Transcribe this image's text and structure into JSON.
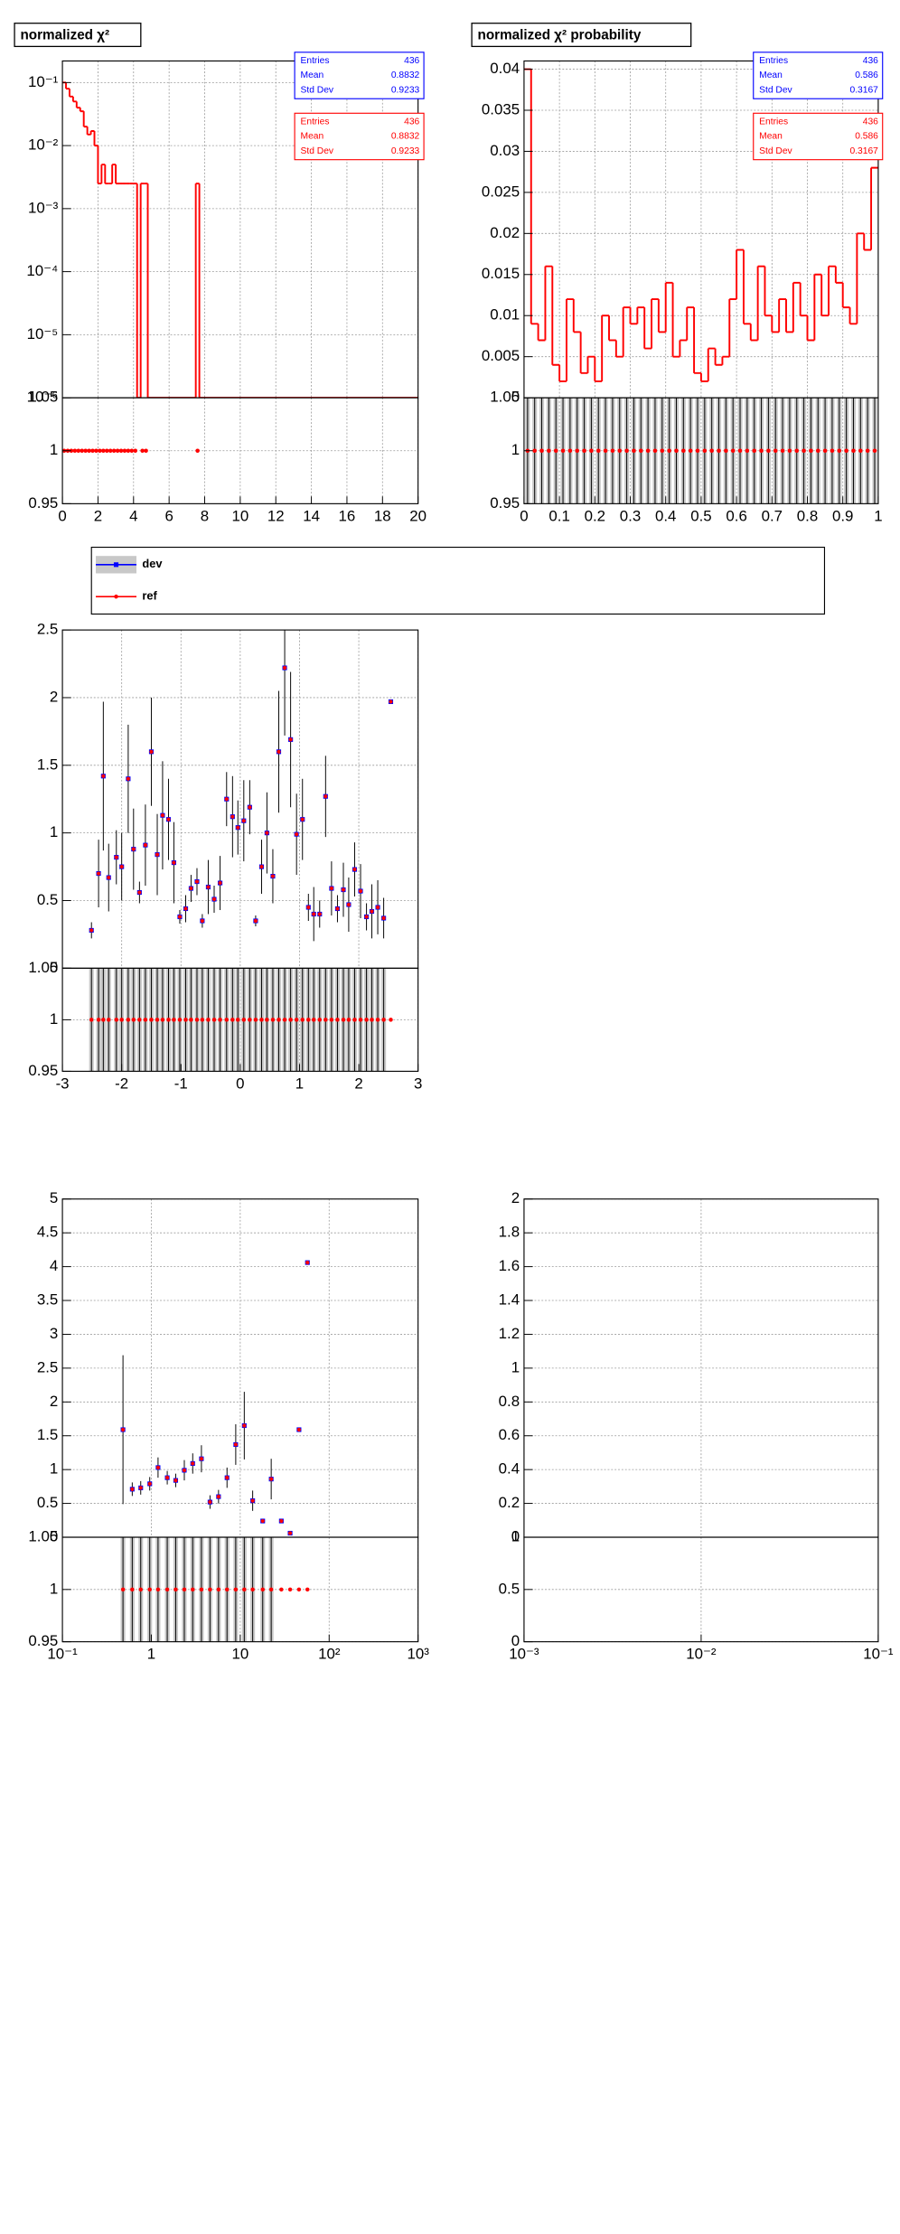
{
  "chart_data": [
    {
      "type": "histogram",
      "title": "normalized χ²",
      "color": "#ff0000",
      "xlim": [
        0,
        20
      ],
      "xticks": [
        0,
        2,
        4,
        6,
        8,
        10,
        12,
        14,
        16,
        18,
        20
      ],
      "ylog": true,
      "ylim": [
        1e-06,
        0.22
      ],
      "yticks": [
        {
          "value": 1e-06,
          "label": "10⁻⁶"
        },
        {
          "value": 1e-05,
          "label": "10⁻⁵"
        },
        {
          "value": 0.0001,
          "label": "10⁻⁴"
        },
        {
          "value": 0.001,
          "label": "10⁻³"
        },
        {
          "value": 0.01,
          "label": "10⁻²"
        },
        {
          "value": 0.1,
          "label": "10⁻¹"
        }
      ],
      "bins": [
        0,
        0.2,
        0.4,
        0.6,
        0.8,
        1.0,
        1.2,
        1.4,
        1.6,
        1.8,
        2.0,
        2.2,
        2.4,
        2.6,
        2.8,
        3.0,
        3.2,
        3.4,
        3.6,
        3.8,
        4.0,
        4.2,
        4.4,
        4.6,
        4.8,
        5.0,
        7.5,
        7.7,
        20
      ],
      "values": [
        0.1,
        0.08,
        0.06,
        0.05,
        0.04,
        0.035,
        0.02,
        0.015,
        0.017,
        0.01,
        0.0025,
        0.005,
        0.0025,
        0.0025,
        0.005,
        0.0025,
        0.0025,
        0.0025,
        0.0025,
        0.0025,
        0.0025,
        0,
        0.0025,
        0.0025,
        0,
        0,
        0.0025,
        0
      ],
      "ratio": {
        "ylim": [
          0.95,
          1.05
        ],
        "yticks": [
          0.95,
          1,
          1.05
        ],
        "values": [
          1,
          1,
          1,
          1,
          1,
          1,
          1,
          1,
          1,
          1,
          1,
          1,
          1,
          1,
          1,
          1,
          1,
          1,
          1,
          1,
          1,
          null,
          1,
          1,
          null,
          null,
          1,
          null
        ]
      },
      "stats": [
        {
          "color": "#0000ff",
          "rows": [
            [
              "Entries",
              436
            ],
            [
              "Mean",
              0.8832
            ],
            [
              "Std Dev",
              0.9233
            ]
          ]
        },
        {
          "color": "#ff0000",
          "rows": [
            [
              "Entries",
              436
            ],
            [
              "Mean",
              0.8832
            ],
            [
              "Std Dev",
              0.9233
            ]
          ]
        }
      ]
    },
    {
      "type": "histogram",
      "title": "normalized χ² probability",
      "color": "#ff0000",
      "xlim": [
        0,
        1
      ],
      "xticks": [
        0,
        0.1,
        0.2,
        0.3,
        0.4,
        0.5,
        0.6,
        0.7,
        0.8,
        0.9,
        1
      ],
      "ylim": [
        0,
        0.041
      ],
      "yticks": [
        0,
        0.005,
        0.01,
        0.015,
        0.02,
        0.025,
        0.03,
        0.035,
        0.04
      ],
      "bins": [
        0,
        0.02,
        0.04,
        0.06,
        0.08,
        0.1,
        0.12,
        0.14,
        0.16,
        0.18,
        0.2,
        0.22,
        0.24,
        0.26,
        0.28,
        0.3,
        0.32,
        0.34,
        0.36,
        0.38,
        0.4,
        0.42,
        0.44,
        0.46,
        0.48,
        0.5,
        0.52,
        0.54,
        0.56,
        0.58,
        0.6,
        0.62,
        0.64,
        0.66,
        0.68,
        0.7,
        0.72,
        0.74,
        0.76,
        0.78,
        0.8,
        0.82,
        0.84,
        0.86,
        0.88,
        0.9,
        0.92,
        0.94,
        0.96,
        0.98,
        1.0
      ],
      "values": [
        0.04,
        0.009,
        0.007,
        0.016,
        0.004,
        0.002,
        0.012,
        0.008,
        0.003,
        0.005,
        0.002,
        0.01,
        0.007,
        0.005,
        0.011,
        0.009,
        0.011,
        0.006,
        0.012,
        0.008,
        0.014,
        0.005,
        0.007,
        0.011,
        0.003,
        0.002,
        0.006,
        0.004,
        0.005,
        0.012,
        0.018,
        0.009,
        0.007,
        0.016,
        0.01,
        0.008,
        0.012,
        0.008,
        0.014,
        0.01,
        0.007,
        0.015,
        0.01,
        0.016,
        0.014,
        0.011,
        0.009,
        0.02,
        0.018,
        0.028
      ],
      "ratio": {
        "ylim": [
          0.95,
          1.05
        ],
        "yticks": [
          0.95,
          1,
          1.05
        ],
        "values": [
          1,
          1,
          1,
          1,
          1,
          1,
          1,
          1,
          1,
          1,
          1,
          1,
          1,
          1,
          1,
          1,
          1,
          1,
          1,
          1,
          1,
          1,
          1,
          1,
          1,
          1,
          1,
          1,
          1,
          1,
          1,
          1,
          1,
          1,
          1,
          1,
          1,
          1,
          1,
          1,
          1,
          1,
          1,
          1,
          1,
          1,
          1,
          1,
          1,
          1
        ],
        "errors": [
          0.5,
          0.5,
          0.5,
          0.5,
          0.5,
          0.5,
          0.5,
          0.5,
          0.5,
          0.5,
          0.5,
          0.5,
          0.5,
          0.5,
          0.5,
          0.5,
          0.5,
          0.5,
          0.5,
          0.5,
          0.5,
          0.5,
          0.5,
          0.5,
          0.5,
          0.5,
          0.5,
          0.5,
          0.5,
          0.5,
          0.5,
          0.5,
          0.5,
          0.5,
          0.5,
          0.5,
          0.5,
          0.5,
          0.5,
          0.5,
          0.5,
          0.5,
          0.5,
          0.5,
          0.5,
          0.5,
          0.5,
          0.5,
          0.5,
          0.5
        ]
      },
      "stats": [
        {
          "color": "#0000ff",
          "rows": [
            [
              "Entries",
              436
            ],
            [
              "Mean",
              0.586
            ],
            [
              "Std Dev",
              0.3167
            ]
          ]
        },
        {
          "color": "#ff0000",
          "rows": [
            [
              "Entries",
              436
            ],
            [
              "Mean",
              0.586
            ],
            [
              "Std Dev",
              0.3167
            ]
          ]
        }
      ]
    },
    {
      "type": "scatter",
      "xlim": [
        -3,
        3
      ],
      "xticks": [
        -3,
        -2,
        -1,
        0,
        1,
        2,
        3
      ],
      "ylim": [
        0,
        2.5
      ],
      "yticks": [
        0,
        0.5,
        1,
        1.5,
        2,
        2.5
      ],
      "x": [
        -2.51,
        -2.39,
        -2.31,
        -2.22,
        -2.09,
        -2.0,
        -1.89,
        -1.8,
        -1.7,
        -1.6,
        -1.5,
        -1.4,
        -1.31,
        -1.21,
        -1.12,
        -1.02,
        -0.92,
        -0.83,
        -0.73,
        -0.64,
        -0.54,
        -0.44,
        -0.34,
        -0.23,
        -0.13,
        -0.04,
        0.06,
        0.16,
        0.26,
        0.36,
        0.45,
        0.55,
        0.65,
        0.75,
        0.85,
        0.95,
        1.05,
        1.15,
        1.24,
        1.34,
        1.44,
        1.54,
        1.64,
        1.74,
        1.83,
        1.93,
        2.03,
        2.13,
        2.22,
        2.32,
        2.42,
        2.54
      ],
      "series": [
        {
          "name": "dev",
          "color": "#0000ff",
          "values": [
            0.28,
            0.7,
            1.42,
            0.67,
            0.82,
            0.75,
            1.4,
            0.88,
            0.56,
            0.91,
            1.6,
            0.84,
            1.13,
            1.1,
            0.78,
            0.38,
            0.44,
            0.59,
            0.64,
            0.35,
            0.6,
            0.51,
            0.63,
            1.25,
            1.12,
            1.04,
            1.09,
            1.19,
            0.35,
            0.75,
            1.0,
            0.68,
            1.6,
            2.22,
            1.69,
            0.99,
            1.1,
            0.45,
            0.4,
            0.4,
            1.27,
            0.59,
            0.44,
            0.58,
            0.47,
            0.73,
            0.57,
            0.38,
            0.42,
            0.45,
            0.37,
            1.97
          ],
          "errors": [
            0.06,
            0.25,
            0.55,
            0.25,
            0.2,
            0.25,
            0.4,
            0.3,
            0.08,
            0.3,
            0.4,
            0.3,
            0.4,
            0.3,
            0.3,
            0.05,
            0.1,
            0.1,
            0.1,
            0.05,
            0.2,
            0.1,
            0.2,
            0.2,
            0.3,
            0.2,
            0.3,
            0.2,
            0.04,
            0.2,
            0.3,
            0.2,
            0.45,
            0.5,
            0.5,
            0.3,
            0.3,
            0.1,
            0.2,
            0.1,
            0.3,
            0.2,
            0.1,
            0.2,
            0.2,
            0.2,
            0.2,
            0.1,
            0.2,
            0.2,
            0.15,
            0.01
          ]
        },
        {
          "name": "ref",
          "color": "#ff0000",
          "values": [
            0.28,
            0.7,
            1.42,
            0.67,
            0.82,
            0.75,
            1.4,
            0.88,
            0.56,
            0.91,
            1.6,
            0.84,
            1.13,
            1.1,
            0.78,
            0.38,
            0.44,
            0.59,
            0.64,
            0.35,
            0.6,
            0.51,
            0.63,
            1.25,
            1.12,
            1.04,
            1.09,
            1.19,
            0.35,
            0.75,
            1.0,
            0.68,
            1.6,
            2.22,
            1.69,
            0.99,
            1.1,
            0.45,
            0.4,
            0.4,
            1.27,
            0.59,
            0.44,
            0.58,
            0.47,
            0.73,
            0.57,
            0.38,
            0.42,
            0.45,
            0.37,
            1.97
          ]
        }
      ],
      "ratio": {
        "ylim": [
          0.95,
          1.05
        ],
        "yticks": [
          0.95,
          1,
          1.05
        ],
        "values": [
          1,
          1,
          1,
          1,
          1,
          1,
          1,
          1,
          1,
          1,
          1,
          1,
          1,
          1,
          1,
          1,
          1,
          1,
          1,
          1,
          1,
          1,
          1,
          1,
          1,
          1,
          1,
          1,
          1,
          1,
          1,
          1,
          1,
          1,
          1,
          1,
          1,
          1,
          1,
          1,
          1,
          1,
          1,
          1,
          1,
          1,
          1,
          1,
          1,
          1,
          1,
          1
        ],
        "errors": [
          0.5,
          0.5,
          0.5,
          0.5,
          0.5,
          0.5,
          0.5,
          0.5,
          0.5,
          0.5,
          0.5,
          0.5,
          0.5,
          0.5,
          0.5,
          0.5,
          0.5,
          0.5,
          0.5,
          0.5,
          0.5,
          0.5,
          0.5,
          0.5,
          0.5,
          0.5,
          0.5,
          0.5,
          0.5,
          0.5,
          0.5,
          0.5,
          0.5,
          0.5,
          0.5,
          0.5,
          0.5,
          0.5,
          0.5,
          0.5,
          0.5,
          0.5,
          0.5,
          0.5,
          0.5,
          0.5,
          0.5,
          0.5,
          0.5,
          0.5,
          0.5,
          0
        ]
      }
    },
    {
      "type": "scatter",
      "xlog": true,
      "xlim": [
        0.1,
        1000
      ],
      "xticks": [
        {
          "value": 0.1,
          "label": "10⁻¹"
        },
        1,
        10,
        {
          "value": 100,
          "label": "10²"
        },
        {
          "value": 1000,
          "label": "10³"
        }
      ],
      "ylim": [
        0,
        5
      ],
      "yticks": [
        0,
        0.5,
        1,
        1.5,
        2,
        2.5,
        3,
        3.5,
        4,
        4.5,
        5
      ],
      "x": [
        0.48,
        0.61,
        0.76,
        0.96,
        1.19,
        1.51,
        1.88,
        2.35,
        2.92,
        3.66,
        4.57,
        5.7,
        7.1,
        8.9,
        11.1,
        13.8,
        17.9,
        22.3,
        29,
        36.4,
        45.8,
        57
      ],
      "series": [
        {
          "name": "dev",
          "color": "#0000ff",
          "values": [
            1.59,
            0.71,
            0.73,
            0.79,
            1.03,
            0.88,
            0.84,
            0.99,
            1.09,
            1.16,
            0.52,
            0.6,
            0.88,
            1.37,
            1.65,
            0.54,
            0.24,
            0.86,
            0.24,
            0.06,
            1.59,
            4.06
          ],
          "errors": [
            1.1,
            0.1,
            0.1,
            0.1,
            0.15,
            0.1,
            0.1,
            0.15,
            0.15,
            0.2,
            0.1,
            0.1,
            0.15,
            0.3,
            0.5,
            0.15,
            0.02,
            0.3,
            0.02,
            0.02,
            0.02,
            0.02
          ]
        },
        {
          "name": "ref",
          "color": "#ff0000",
          "values": [
            1.59,
            0.71,
            0.73,
            0.79,
            1.03,
            0.88,
            0.84,
            0.99,
            1.09,
            1.16,
            0.52,
            0.6,
            0.88,
            1.37,
            1.65,
            0.54,
            0.24,
            0.86,
            0.24,
            0.06,
            1.59,
            4.06
          ]
        }
      ],
      "ratio": {
        "ylim": [
          0.95,
          1.05
        ],
        "yticks": [
          0.95,
          1,
          1.05
        ],
        "values": [
          1,
          1,
          1,
          1,
          1,
          1,
          1,
          1,
          1,
          1,
          1,
          1,
          1,
          1,
          1,
          1,
          1,
          1,
          1,
          1,
          1,
          1
        ],
        "errors": [
          0.5,
          0.5,
          0.5,
          0.5,
          0.5,
          0.5,
          0.5,
          0.5,
          0.5,
          0.5,
          0.5,
          0.5,
          0.5,
          0.5,
          0.5,
          0.5,
          0.5,
          0.5,
          0,
          0,
          0,
          0
        ]
      }
    },
    {
      "type": "scatter",
      "xlog": true,
      "xlim": [
        0.001,
        0.1
      ],
      "xticks": [
        {
          "value": 0.001,
          "label": "10⁻³"
        },
        {
          "value": 0.01,
          "label": "10⁻²"
        },
        {
          "value": 0.1,
          "label": "10⁻¹"
        }
      ],
      "ylim": [
        0,
        2
      ],
      "yticks": [
        0,
        0.2,
        0.4,
        0.6,
        0.8,
        1,
        1.2,
        1.4,
        1.6,
        1.8,
        2
      ],
      "x": [],
      "series": [],
      "ratio": {
        "ylim": [
          0,
          1
        ],
        "yticks": [
          0,
          0.5,
          1
        ]
      }
    }
  ]
}
